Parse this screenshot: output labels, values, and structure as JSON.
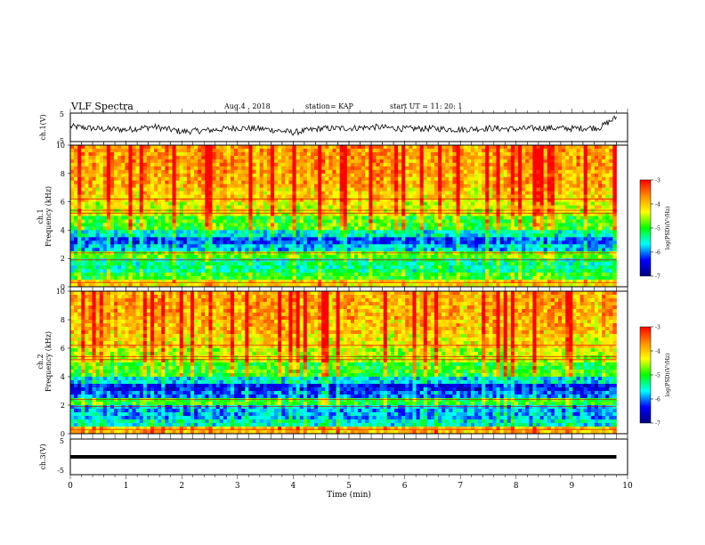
{
  "header": {
    "title": "VLF Spectra",
    "date": "Aug.4 , 2018",
    "station": "station= KAP",
    "start_ut": "start UT = 11: 20: 1"
  },
  "axes": {
    "time_label": "Time (min)",
    "time_ticks": [
      "0",
      "1",
      "2",
      "3",
      "4",
      "5",
      "6",
      "7",
      "8",
      "9",
      "10"
    ],
    "ch1_label": "ch.1(V)",
    "ch3_label": "ch.3(V)",
    "voltage_ticks": [
      "5",
      "-5"
    ],
    "spec1_label": "ch.1",
    "spec2_label": "ch.2",
    "freq_label": "Frequency (kHz)",
    "freq_ticks": [
      "0",
      "2",
      "4",
      "6",
      "8",
      "10"
    ]
  },
  "colorbar": {
    "label": "log(PSD)(V²/Hz)",
    "ticks": [
      "-3",
      "-4",
      "-5",
      "-6",
      "-7"
    ],
    "colors": [
      "#ff0000",
      "#ff8c00",
      "#ffff00",
      "#00ff00",
      "#00ffff",
      "#0000ff",
      "#000080"
    ]
  },
  "chart_data": [
    {
      "type": "line",
      "name": "ch.1 waveform",
      "ylabel": "ch.1(V)",
      "ylim": [
        -5,
        5
      ],
      "xlim": [
        0,
        10
      ],
      "x": [
        0,
        0.5,
        1,
        1.5,
        2,
        2.5,
        3,
        3.5,
        4,
        4.5,
        5,
        5.5,
        6,
        6.5,
        7,
        7.5,
        8,
        8.5,
        9,
        9.5,
        9.8
      ],
      "y": [
        0.3,
        -0.5,
        -0.8,
        0.2,
        -1.5,
        -1.0,
        -0.2,
        -0.6,
        -1.8,
        -0.4,
        -0.3,
        0.1,
        -0.5,
        -0.4,
        -0.8,
        -0.3,
        -0.6,
        -0.2,
        -0.4,
        -0.1,
        3.5
      ]
    },
    {
      "type": "heatmap",
      "name": "ch.1 spectrogram",
      "xlabel": "Time (min)",
      "ylabel": "Frequency (kHz)",
      "xlim": [
        0,
        10
      ],
      "ylim": [
        0,
        10
      ],
      "zlim": [
        -7,
        -3
      ],
      "freq_bands_kHz": [
        0,
        0.5,
        1.0,
        2.0,
        2.5,
        3.0,
        3.5,
        4.0,
        5.0,
        6.0,
        7.0,
        8.0,
        9.0,
        10.0
      ],
      "band_log_psd": [
        -4.2,
        -5.0,
        -5.4,
        -4.8,
        -5.8,
        -6.2,
        -5.6,
        -4.9,
        -4.4,
        -4.1,
        -3.9,
        -3.8,
        -3.8
      ]
    },
    {
      "type": "heatmap",
      "name": "ch.2 spectrogram",
      "xlabel": "Time (min)",
      "ylabel": "Frequency (kHz)",
      "xlim": [
        0,
        10
      ],
      "ylim": [
        0,
        10
      ],
      "zlim": [
        -7,
        -3
      ],
      "freq_bands_kHz": [
        0,
        0.5,
        1.0,
        2.0,
        2.5,
        3.0,
        3.5,
        4.0,
        5.0,
        6.0,
        7.0,
        8.0,
        9.0,
        10.0
      ],
      "band_log_psd": [
        -4.0,
        -5.6,
        -5.9,
        -5.0,
        -6.1,
        -6.4,
        -5.7,
        -5.0,
        -4.5,
        -4.2,
        -4.0,
        -3.9,
        -3.9
      ]
    },
    {
      "type": "line",
      "name": "ch.3 waveform",
      "ylabel": "ch.3(V)",
      "ylim": [
        -5,
        5
      ],
      "xlim": [
        0,
        10
      ],
      "x": [
        0,
        9.8
      ],
      "y": [
        0,
        0
      ]
    }
  ]
}
